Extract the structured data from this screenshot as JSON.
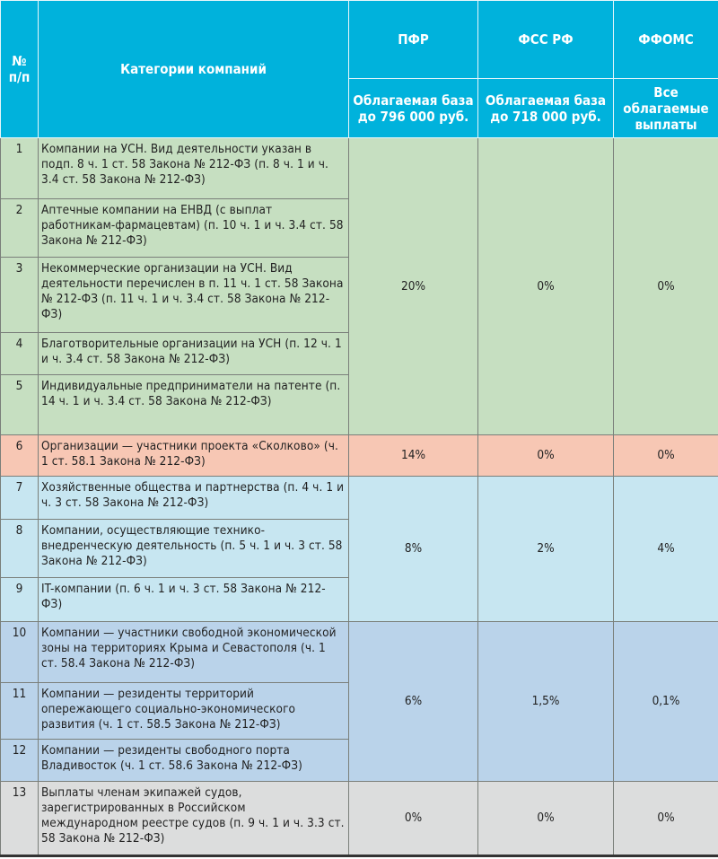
{
  "header": {
    "num": "№ п/п",
    "category": "Категории компаний",
    "funds": [
      {
        "name": "ПФР",
        "base": "Облагаемая база до 796 000 руб."
      },
      {
        "name": "ФСС РФ",
        "base": "Облагаемая база до 718 000 руб."
      },
      {
        "name": "ФФОМС",
        "base": "Все облагаемые выплаты"
      }
    ]
  },
  "colors": {
    "header": "#00b2dc",
    "group1": "#c6dfc1",
    "group2": "#f7c7b4",
    "group3": "#c7e6f1",
    "group4": "#bad3ea",
    "group5": "#dcdddd"
  },
  "rows": [
    {
      "num": "1",
      "category": "Компании на УСН. Вид деятельности указан в подп. 8 ч. 1 ст. 58 Закона № 212-ФЗ (п. 8 ч. 1 и ч. 3.4 ст. 58 Закона № 212-ФЗ)"
    },
    {
      "num": "2",
      "category": "Аптечные компании на ЕНВД (с выплат работникам-фармацевтам) (п. 10 ч. 1 и ч. 3.4 ст. 58 Закона № 212-ФЗ)"
    },
    {
      "num": "3",
      "category": "Некоммерческие организации на УСН. Вид деятельности перечислен в п. 11 ч. 1 ст. 58 Закона № 212-ФЗ (п. 11 ч. 1 и ч. 3.4 ст. 58 Закона № 212-ФЗ)"
    },
    {
      "num": "4",
      "category": "Благотворительные организации на УСН (п. 12 ч. 1 и ч. 3.4 ст. 58 Закона № 212-ФЗ)"
    },
    {
      "num": "5",
      "category": "Индивидуальные предприниматели на патенте (п. 14 ч. 1 и ч. 3.4 ст. 58 Закона № 212-ФЗ)"
    },
    {
      "num": "6",
      "category": "Организации — участники проекта «Сколково» (ч. 1 ст. 58.1 Закона № 212-ФЗ)"
    },
    {
      "num": "7",
      "category": "Хозяйственные общества и партнерства (п. 4 ч. 1 и ч. 3 ст. 58 Закона № 212-ФЗ)"
    },
    {
      "num": "8",
      "category": "Компании, осуществляющие технико-внедренческую деятельность (п. 5 ч. 1 и ч. 3 ст. 58 Закона № 212-ФЗ)"
    },
    {
      "num": "9",
      "category": "IT-компании (п. 6 ч. 1 и ч. 3 ст. 58 Закона № 212-ФЗ)"
    },
    {
      "num": "10",
      "category": "Компании — участники свободной экономической зоны на территориях Крыма и Севастополя (ч. 1 ст. 58.4 Закона № 212-ФЗ)"
    },
    {
      "num": "11",
      "category": "Компании — резиденты территорий опережающего социально-экономического развития (ч. 1 ст. 58.5 Закона № 212-ФЗ)"
    },
    {
      "num": "12",
      "category": "Компании — резиденты свободного порта Владивосток (ч. 1 ст. 58.6 Закона № 212-ФЗ)"
    },
    {
      "num": "13",
      "category": "Выплаты членам экипажей судов, зарегистрированных в Российском международном реестре судов (п. 9 ч. 1 и ч. 3.3 ст. 58 Закона № 212-ФЗ)"
    }
  ],
  "groups": [
    {
      "pfr": "20%",
      "fss": "0%",
      "ffoms": "0%"
    },
    {
      "pfr": "14%",
      "fss": "0%",
      "ffoms": "0%"
    },
    {
      "pfr": "8%",
      "fss": "2%",
      "ffoms": "4%"
    },
    {
      "pfr": "6%",
      "fss": "1,5%",
      "ffoms": "0,1%"
    },
    {
      "pfr": "0%",
      "fss": "0%",
      "ffoms": "0%"
    }
  ]
}
